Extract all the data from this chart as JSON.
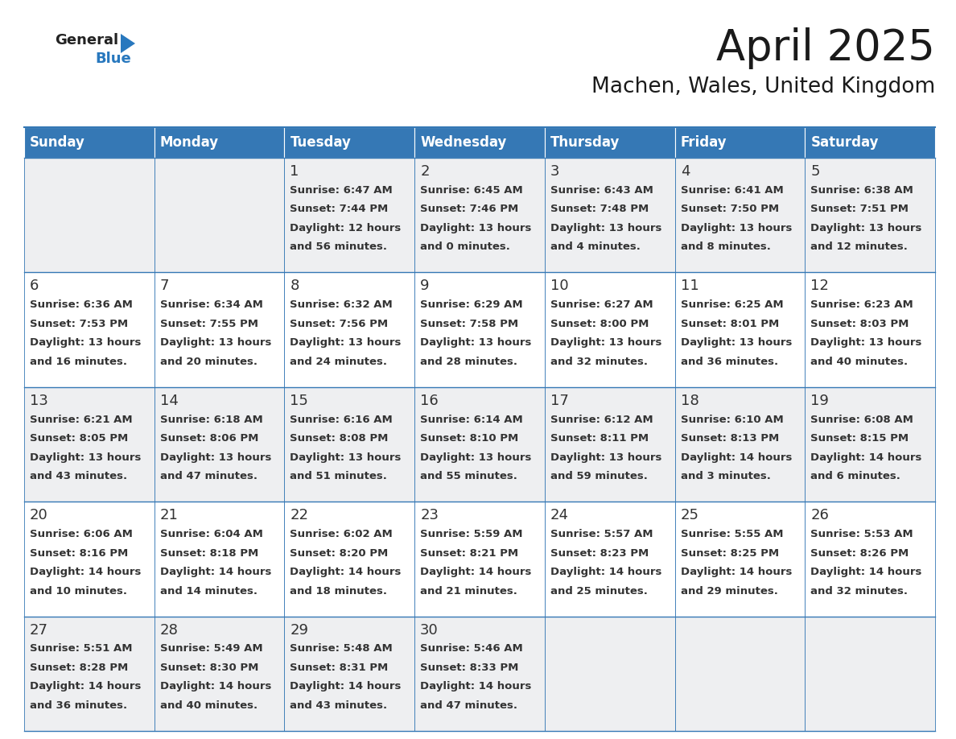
{
  "title": "April 2025",
  "subtitle": "Machen, Wales, United Kingdom",
  "header_color": "#3578b5",
  "header_text_color": "#ffffff",
  "cell_bg_even": "#eeeff1",
  "cell_bg_odd": "#ffffff",
  "border_color": "#3578b5",
  "text_color": "#333333",
  "day_names": [
    "Sunday",
    "Monday",
    "Tuesday",
    "Wednesday",
    "Thursday",
    "Friday",
    "Saturday"
  ],
  "days": [
    {
      "date": 1,
      "col": 2,
      "row": 0,
      "sunrise": "6:47 AM",
      "sunset": "7:44 PM",
      "dl1": "Daylight: 12 hours",
      "dl2": "and 56 minutes."
    },
    {
      "date": 2,
      "col": 3,
      "row": 0,
      "sunrise": "6:45 AM",
      "sunset": "7:46 PM",
      "dl1": "Daylight: 13 hours",
      "dl2": "and 0 minutes."
    },
    {
      "date": 3,
      "col": 4,
      "row": 0,
      "sunrise": "6:43 AM",
      "sunset": "7:48 PM",
      "dl1": "Daylight: 13 hours",
      "dl2": "and 4 minutes."
    },
    {
      "date": 4,
      "col": 5,
      "row": 0,
      "sunrise": "6:41 AM",
      "sunset": "7:50 PM",
      "dl1": "Daylight: 13 hours",
      "dl2": "and 8 minutes."
    },
    {
      "date": 5,
      "col": 6,
      "row": 0,
      "sunrise": "6:38 AM",
      "sunset": "7:51 PM",
      "dl1": "Daylight: 13 hours",
      "dl2": "and 12 minutes."
    },
    {
      "date": 6,
      "col": 0,
      "row": 1,
      "sunrise": "6:36 AM",
      "sunset": "7:53 PM",
      "dl1": "Daylight: 13 hours",
      "dl2": "and 16 minutes."
    },
    {
      "date": 7,
      "col": 1,
      "row": 1,
      "sunrise": "6:34 AM",
      "sunset": "7:55 PM",
      "dl1": "Daylight: 13 hours",
      "dl2": "and 20 minutes."
    },
    {
      "date": 8,
      "col": 2,
      "row": 1,
      "sunrise": "6:32 AM",
      "sunset": "7:56 PM",
      "dl1": "Daylight: 13 hours",
      "dl2": "and 24 minutes."
    },
    {
      "date": 9,
      "col": 3,
      "row": 1,
      "sunrise": "6:29 AM",
      "sunset": "7:58 PM",
      "dl1": "Daylight: 13 hours",
      "dl2": "and 28 minutes."
    },
    {
      "date": 10,
      "col": 4,
      "row": 1,
      "sunrise": "6:27 AM",
      "sunset": "8:00 PM",
      "dl1": "Daylight: 13 hours",
      "dl2": "and 32 minutes."
    },
    {
      "date": 11,
      "col": 5,
      "row": 1,
      "sunrise": "6:25 AM",
      "sunset": "8:01 PM",
      "dl1": "Daylight: 13 hours",
      "dl2": "and 36 minutes."
    },
    {
      "date": 12,
      "col": 6,
      "row": 1,
      "sunrise": "6:23 AM",
      "sunset": "8:03 PM",
      "dl1": "Daylight: 13 hours",
      "dl2": "and 40 minutes."
    },
    {
      "date": 13,
      "col": 0,
      "row": 2,
      "sunrise": "6:21 AM",
      "sunset": "8:05 PM",
      "dl1": "Daylight: 13 hours",
      "dl2": "and 43 minutes."
    },
    {
      "date": 14,
      "col": 1,
      "row": 2,
      "sunrise": "6:18 AM",
      "sunset": "8:06 PM",
      "dl1": "Daylight: 13 hours",
      "dl2": "and 47 minutes."
    },
    {
      "date": 15,
      "col": 2,
      "row": 2,
      "sunrise": "6:16 AM",
      "sunset": "8:08 PM",
      "dl1": "Daylight: 13 hours",
      "dl2": "and 51 minutes."
    },
    {
      "date": 16,
      "col": 3,
      "row": 2,
      "sunrise": "6:14 AM",
      "sunset": "8:10 PM",
      "dl1": "Daylight: 13 hours",
      "dl2": "and 55 minutes."
    },
    {
      "date": 17,
      "col": 4,
      "row": 2,
      "sunrise": "6:12 AM",
      "sunset": "8:11 PM",
      "dl1": "Daylight: 13 hours",
      "dl2": "and 59 minutes."
    },
    {
      "date": 18,
      "col": 5,
      "row": 2,
      "sunrise": "6:10 AM",
      "sunset": "8:13 PM",
      "dl1": "Daylight: 14 hours",
      "dl2": "and 3 minutes."
    },
    {
      "date": 19,
      "col": 6,
      "row": 2,
      "sunrise": "6:08 AM",
      "sunset": "8:15 PM",
      "dl1": "Daylight: 14 hours",
      "dl2": "and 6 minutes."
    },
    {
      "date": 20,
      "col": 0,
      "row": 3,
      "sunrise": "6:06 AM",
      "sunset": "8:16 PM",
      "dl1": "Daylight: 14 hours",
      "dl2": "and 10 minutes."
    },
    {
      "date": 21,
      "col": 1,
      "row": 3,
      "sunrise": "6:04 AM",
      "sunset": "8:18 PM",
      "dl1": "Daylight: 14 hours",
      "dl2": "and 14 minutes."
    },
    {
      "date": 22,
      "col": 2,
      "row": 3,
      "sunrise": "6:02 AM",
      "sunset": "8:20 PM",
      "dl1": "Daylight: 14 hours",
      "dl2": "and 18 minutes."
    },
    {
      "date": 23,
      "col": 3,
      "row": 3,
      "sunrise": "5:59 AM",
      "sunset": "8:21 PM",
      "dl1": "Daylight: 14 hours",
      "dl2": "and 21 minutes."
    },
    {
      "date": 24,
      "col": 4,
      "row": 3,
      "sunrise": "5:57 AM",
      "sunset": "8:23 PM",
      "dl1": "Daylight: 14 hours",
      "dl2": "and 25 minutes."
    },
    {
      "date": 25,
      "col": 5,
      "row": 3,
      "sunrise": "5:55 AM",
      "sunset": "8:25 PM",
      "dl1": "Daylight: 14 hours",
      "dl2": "and 29 minutes."
    },
    {
      "date": 26,
      "col": 6,
      "row": 3,
      "sunrise": "5:53 AM",
      "sunset": "8:26 PM",
      "dl1": "Daylight: 14 hours",
      "dl2": "and 32 minutes."
    },
    {
      "date": 27,
      "col": 0,
      "row": 4,
      "sunrise": "5:51 AM",
      "sunset": "8:28 PM",
      "dl1": "Daylight: 14 hours",
      "dl2": "and 36 minutes."
    },
    {
      "date": 28,
      "col": 1,
      "row": 4,
      "sunrise": "5:49 AM",
      "sunset": "8:30 PM",
      "dl1": "Daylight: 14 hours",
      "dl2": "and 40 minutes."
    },
    {
      "date": 29,
      "col": 2,
      "row": 4,
      "sunrise": "5:48 AM",
      "sunset": "8:31 PM",
      "dl1": "Daylight: 14 hours",
      "dl2": "and 43 minutes."
    },
    {
      "date": 30,
      "col": 3,
      "row": 4,
      "sunrise": "5:46 AM",
      "sunset": "8:33 PM",
      "dl1": "Daylight: 14 hours",
      "dl2": "and 47 minutes."
    }
  ],
  "num_rows": 5,
  "num_cols": 7,
  "logo_triangle_color": "#2878be",
  "title_fontsize": 38,
  "subtitle_fontsize": 19,
  "header_fontsize": 12,
  "day_num_fontsize": 13,
  "cell_text_fontsize": 9.5
}
